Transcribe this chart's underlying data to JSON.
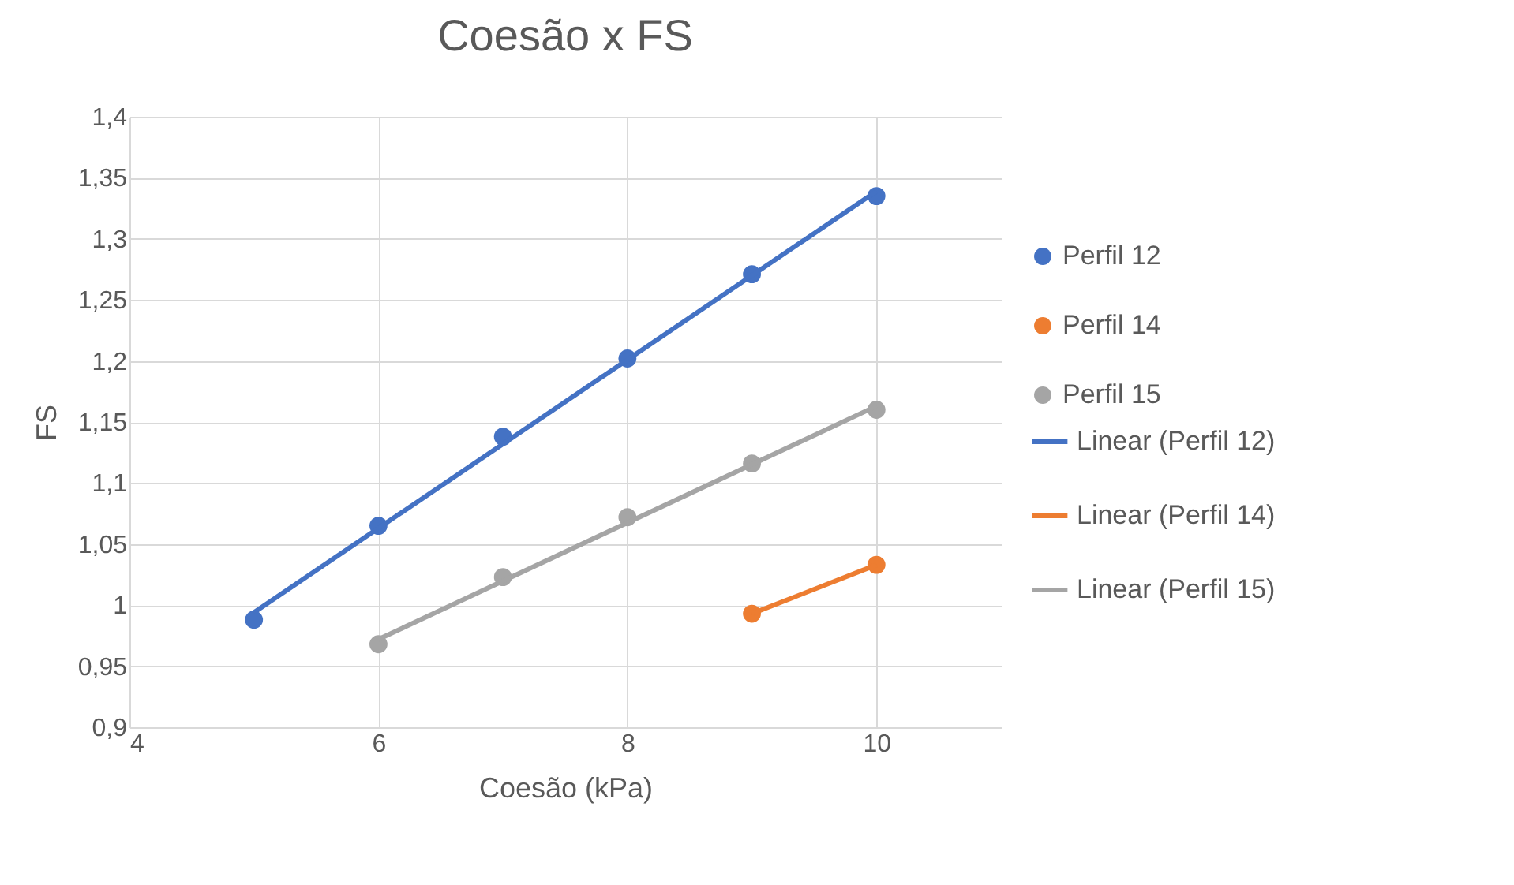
{
  "chart_data": {
    "type": "scatter",
    "title": "Coesão x FS",
    "xlabel": "Coesão (kPa)",
    "ylabel": "FS",
    "xlim": [
      4,
      11
    ],
    "xticks": [
      4,
      6,
      8,
      10
    ],
    "ylim": [
      0.9,
      1.4
    ],
    "yticks": [
      {
        "value": 0.9,
        "label": "0,9"
      },
      {
        "value": 0.95,
        "label": "0,95"
      },
      {
        "value": 1,
        "label": "1"
      },
      {
        "value": 1.05,
        "label": "1,05"
      },
      {
        "value": 1.1,
        "label": "1,1"
      },
      {
        "value": 1.15,
        "label": "1,15"
      },
      {
        "value": 1.2,
        "label": "1,2"
      },
      {
        "value": 1.25,
        "label": "1,25"
      },
      {
        "value": 1.3,
        "label": "1,3"
      },
      {
        "value": 1.35,
        "label": "1,35"
      },
      {
        "value": 1.4,
        "label": "1,4"
      }
    ],
    "grid": true,
    "legend": "right",
    "series": [
      {
        "name": "Perfil 12",
        "type": "scatter",
        "marker": "circle",
        "color": "#4472c4",
        "x": [
          5,
          6,
          7,
          8,
          9,
          10
        ],
        "values": [
          0.988,
          1.065,
          1.138,
          1.202,
          1.271,
          1.335
        ]
      },
      {
        "name": "Perfil 14",
        "type": "scatter",
        "marker": "circle",
        "color": "#ed7d31",
        "x": [
          9,
          10
        ],
        "values": [
          0.993,
          1.033
        ]
      },
      {
        "name": "Perfil 15",
        "type": "scatter",
        "marker": "circle",
        "color": "#a5a5a5",
        "x": [
          6,
          7,
          8,
          9,
          10
        ],
        "values": [
          0.968,
          1.023,
          1.072,
          1.116,
          1.16
        ]
      },
      {
        "name": "Linear (Perfil 12)",
        "type": "line",
        "color": "#4472c4",
        "x": [
          5,
          10
        ],
        "values": [
          0.994,
          1.339
        ]
      },
      {
        "name": "Linear (Perfil 14)",
        "type": "line",
        "color": "#ed7d31",
        "x": [
          9,
          10
        ],
        "values": [
          0.993,
          1.033
        ]
      },
      {
        "name": "Linear (Perfil 15)",
        "type": "line",
        "color": "#a5a5a5",
        "x": [
          6,
          10
        ],
        "values": [
          0.972,
          1.163
        ]
      }
    ]
  }
}
